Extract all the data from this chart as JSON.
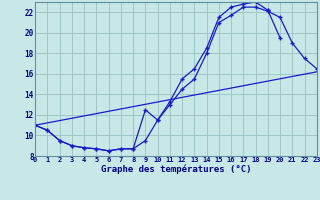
{
  "title": "Graphe des températures (°C)",
  "bg_color": "#c8e8e8",
  "grid_color": "#a0c8c8",
  "line_color": "#1a1acc",
  "xlim": [
    0,
    23
  ],
  "ylim": [
    8,
    23
  ],
  "yticks": [
    8,
    10,
    12,
    14,
    16,
    18,
    20,
    22
  ],
  "xticks": [
    0,
    1,
    2,
    3,
    4,
    5,
    6,
    7,
    8,
    9,
    10,
    11,
    12,
    13,
    14,
    15,
    16,
    17,
    18,
    19,
    20,
    21,
    22,
    23
  ],
  "curve1_x": [
    0,
    1,
    2,
    3,
    4,
    5,
    6,
    7,
    8,
    9,
    10,
    11,
    12,
    13,
    14,
    15,
    16,
    17,
    18,
    19,
    20,
    21,
    22,
    23
  ],
  "curve1_y": [
    11.0,
    10.5,
    9.5,
    9.0,
    8.8,
    8.7,
    8.5,
    8.7,
    8.7,
    12.5,
    11.5,
    13.0,
    14.5,
    15.5,
    18.0,
    21.0,
    21.7,
    22.5,
    22.5,
    22.1,
    21.5,
    19.0,
    17.5,
    16.5
  ],
  "curve2_x": [
    0,
    1,
    2,
    3,
    4,
    5,
    6,
    7,
    8,
    9,
    10,
    11,
    12,
    13,
    14,
    15,
    16,
    17,
    18,
    19
  ],
  "curve2_y": [
    11.0,
    10.5,
    9.5,
    9.0,
    8.8,
    8.7,
    8.5,
    8.7,
    8.7,
    9.5,
    11.5,
    13.3,
    15.5,
    16.5,
    18.5,
    21.5,
    22.5,
    22.8,
    23.0,
    22.2
  ],
  "curve2b_x": [
    19,
    20,
    21,
    22,
    23
  ],
  "curve2b_y": [
    22.2,
    19.5,
    null,
    null,
    null
  ],
  "line3_x": [
    0,
    23
  ],
  "line3_y": [
    11.0,
    16.2
  ]
}
